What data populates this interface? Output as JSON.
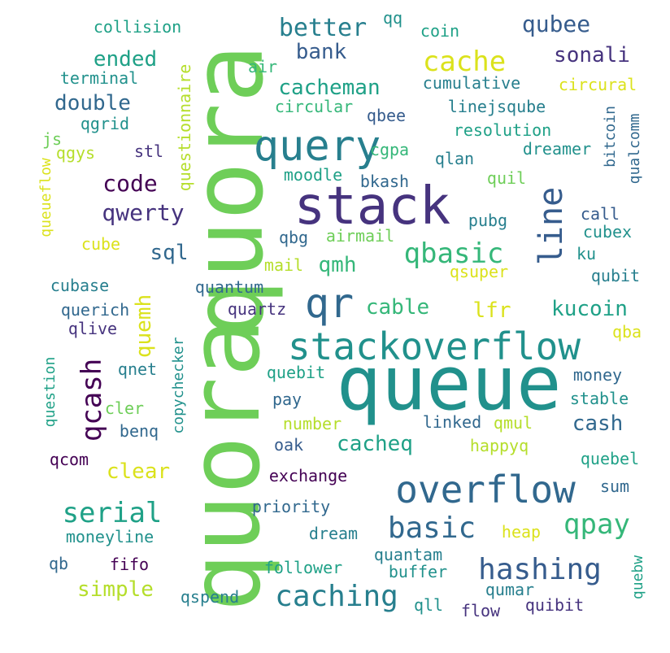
{
  "palette": {
    "purple": "#440154",
    "indigo": "#46337e",
    "slate": "#365c8d",
    "blue": "#31688e",
    "teal": "#277f8e",
    "cyan": "#21918c",
    "green": "#1fa187",
    "mint": "#35b779",
    "lime": "#6ece58",
    "yellowgreen": "#b5de2b",
    "yellow": "#dbe21c"
  },
  "words": [
    {
      "text": "quora",
      "color": "#6ece58",
      "vertical": true
    },
    {
      "text": "quora",
      "color": "#6ece58",
      "vertical": true
    },
    {
      "text": "queue",
      "color": "#21918c",
      "vertical": false
    },
    {
      "text": "stack",
      "color": "#46337e",
      "vertical": false
    },
    {
      "text": "query",
      "color": "#277f8e",
      "vertical": false
    },
    {
      "text": "stackoverflow",
      "color": "#21918c",
      "vertical": false
    },
    {
      "text": "overflow",
      "color": "#31688e",
      "vertical": false
    },
    {
      "text": "qr",
      "color": "#31688e",
      "vertical": false
    },
    {
      "text": "line",
      "color": "#365c8d",
      "vertical": true
    },
    {
      "text": "hashing",
      "color": "#365c8d",
      "vertical": false
    },
    {
      "text": "caching",
      "color": "#277f8e",
      "vertical": false
    },
    {
      "text": "qcash",
      "color": "#440154",
      "vertical": true
    },
    {
      "text": "basic",
      "color": "#31688e",
      "vertical": false
    },
    {
      "text": "qpay",
      "color": "#35b779",
      "vertical": false
    },
    {
      "text": "qbasic",
      "color": "#35b779",
      "vertical": false
    },
    {
      "text": "serial",
      "color": "#1fa187",
      "vertical": false
    },
    {
      "text": "cache",
      "color": "#dbe21c",
      "vertical": false
    },
    {
      "text": "code",
      "color": "#440154",
      "vertical": false
    },
    {
      "text": "qwerty",
      "color": "#46337e",
      "vertical": false
    },
    {
      "text": "better",
      "color": "#277f8e",
      "vertical": false
    },
    {
      "text": "qubee",
      "color": "#365c8d",
      "vertical": false
    },
    {
      "text": "sonali",
      "color": "#46337e",
      "vertical": false
    },
    {
      "text": "bank",
      "color": "#365c8d",
      "vertical": false
    },
    {
      "text": "ended",
      "color": "#1fa187",
      "vertical": false
    },
    {
      "text": "double",
      "color": "#31688e",
      "vertical": false
    },
    {
      "text": "cacheman",
      "color": "#1fa187",
      "vertical": false
    },
    {
      "text": "kucoin",
      "color": "#1fa187",
      "vertical": false
    },
    {
      "text": "lfr",
      "color": "#dbe21c",
      "vertical": false
    },
    {
      "text": "cable",
      "color": "#35b779",
      "vertical": false
    },
    {
      "text": "cacheq",
      "color": "#1fa187",
      "vertical": false
    },
    {
      "text": "cash",
      "color": "#31688e",
      "vertical": false
    },
    {
      "text": "clear",
      "color": "#dbe21c",
      "vertical": false
    },
    {
      "text": "simple",
      "color": "#b5de2b",
      "vertical": false
    },
    {
      "text": "sql",
      "color": "#31688e",
      "vertical": false
    },
    {
      "text": "qmh",
      "color": "#35b779",
      "vertical": false
    },
    {
      "text": "quemh",
      "color": "#dbe21c",
      "vertical": true
    },
    {
      "text": "collision",
      "color": "#1fa187",
      "vertical": false
    },
    {
      "text": "terminal",
      "color": "#21918c",
      "vertical": false
    },
    {
      "text": "qq",
      "color": "#21918c",
      "vertical": false
    },
    {
      "text": "coin",
      "color": "#1fa187",
      "vertical": false
    },
    {
      "text": "air",
      "color": "#35b779",
      "vertical": false
    },
    {
      "text": "cumulative",
      "color": "#277f8e",
      "vertical": false
    },
    {
      "text": "circural",
      "color": "#dbe21c",
      "vertical": false
    },
    {
      "text": "circular",
      "color": "#35b779",
      "vertical": false
    },
    {
      "text": "qbee",
      "color": "#365c8d",
      "vertical": false
    },
    {
      "text": "linejsqube",
      "color": "#277f8e",
      "vertical": false
    },
    {
      "text": "questionnaire",
      "color": "#b5de2b",
      "vertical": true
    },
    {
      "text": "qgrid",
      "color": "#21918c",
      "vertical": false
    },
    {
      "text": "js",
      "color": "#6ece58",
      "vertical": false
    },
    {
      "text": "resolution",
      "color": "#1fa187",
      "vertical": false
    },
    {
      "text": "bitcoin",
      "color": "#31688e",
      "vertical": true
    },
    {
      "text": "qualcomm",
      "color": "#31688e",
      "vertical": true
    },
    {
      "text": "qgys",
      "color": "#b5de2b",
      "vertical": false
    },
    {
      "text": "stl",
      "color": "#46337e",
      "vertical": false
    },
    {
      "text": "cgpa",
      "color": "#35b779",
      "vertical": false
    },
    {
      "text": "qlan",
      "color": "#277f8e",
      "vertical": false
    },
    {
      "text": "dreamer",
      "color": "#21918c",
      "vertical": false
    },
    {
      "text": "moodle",
      "color": "#1fa187",
      "vertical": false
    },
    {
      "text": "bkash",
      "color": "#31688e",
      "vertical": false
    },
    {
      "text": "quil",
      "color": "#6ece58",
      "vertical": false
    },
    {
      "text": "queueflow",
      "color": "#dbe21c",
      "vertical": true
    },
    {
      "text": "call",
      "color": "#365c8d",
      "vertical": false
    },
    {
      "text": "pubg",
      "color": "#277f8e",
      "vertical": false
    },
    {
      "text": "cubex",
      "color": "#21918c",
      "vertical": false
    },
    {
      "text": "cube",
      "color": "#dbe21c",
      "vertical": false
    },
    {
      "text": "qbg",
      "color": "#31688e",
      "vertical": false
    },
    {
      "text": "airmail",
      "color": "#6ece58",
      "vertical": false
    },
    {
      "text": "ku",
      "color": "#21918c",
      "vertical": false
    },
    {
      "text": "mail",
      "color": "#b5de2b",
      "vertical": false
    },
    {
      "text": "qsuper",
      "color": "#dbe21c",
      "vertical": false
    },
    {
      "text": "qubit",
      "color": "#277f8e",
      "vertical": false
    },
    {
      "text": "cubase",
      "color": "#277f8e",
      "vertical": false
    },
    {
      "text": "quantum",
      "color": "#31688e",
      "vertical": false
    },
    {
      "text": "querich",
      "color": "#31688e",
      "vertical": false
    },
    {
      "text": "quartz",
      "color": "#46337e",
      "vertical": false
    },
    {
      "text": "qlive",
      "color": "#46337e",
      "vertical": false
    },
    {
      "text": "qba",
      "color": "#dbe21c",
      "vertical": false
    },
    {
      "text": "question",
      "color": "#1fa187",
      "vertical": true
    },
    {
      "text": "copychecker",
      "color": "#21918c",
      "vertical": true
    },
    {
      "text": "qnet",
      "color": "#277f8e",
      "vertical": false
    },
    {
      "text": "quebit",
      "color": "#1fa187",
      "vertical": false
    },
    {
      "text": "money",
      "color": "#31688e",
      "vertical": false
    },
    {
      "text": "pay",
      "color": "#31688e",
      "vertical": false
    },
    {
      "text": "stable",
      "color": "#21918c",
      "vertical": false
    },
    {
      "text": "cler",
      "color": "#6ece58",
      "vertical": false
    },
    {
      "text": "number",
      "color": "#b5de2b",
      "vertical": false
    },
    {
      "text": "linked",
      "color": "#31688e",
      "vertical": false
    },
    {
      "text": "qmul",
      "color": "#b5de2b",
      "vertical": false
    },
    {
      "text": "benq",
      "color": "#31688e",
      "vertical": false
    },
    {
      "text": "oak",
      "color": "#365c8d",
      "vertical": false
    },
    {
      "text": "happyq",
      "color": "#b5de2b",
      "vertical": false
    },
    {
      "text": "qcom",
      "color": "#440154",
      "vertical": false
    },
    {
      "text": "quebel",
      "color": "#1fa187",
      "vertical": false
    },
    {
      "text": "exchange",
      "color": "#440154",
      "vertical": false
    },
    {
      "text": "sum",
      "color": "#31688e",
      "vertical": false
    },
    {
      "text": "priority",
      "color": "#31688e",
      "vertical": false
    },
    {
      "text": "heap",
      "color": "#dbe21c",
      "vertical": false
    },
    {
      "text": "moneyline",
      "color": "#21918c",
      "vertical": false
    },
    {
      "text": "dream",
      "color": "#277f8e",
      "vertical": false
    },
    {
      "text": "quantam",
      "color": "#277f8e",
      "vertical": false
    },
    {
      "text": "qb",
      "color": "#31688e",
      "vertical": false
    },
    {
      "text": "fifo",
      "color": "#440154",
      "vertical": false
    },
    {
      "text": "follower",
      "color": "#1fa187",
      "vertical": false
    },
    {
      "text": "buffer",
      "color": "#21918c",
      "vertical": false
    },
    {
      "text": "quebw",
      "color": "#1fa187",
      "vertical": true
    },
    {
      "text": "qumar",
      "color": "#277f8e",
      "vertical": false
    },
    {
      "text": "qspend",
      "color": "#277f8e",
      "vertical": false
    },
    {
      "text": "qll",
      "color": "#21918c",
      "vertical": false
    },
    {
      "text": "flow",
      "color": "#46337e",
      "vertical": false
    },
    {
      "text": "quibit",
      "color": "#46337e",
      "vertical": false
    }
  ]
}
